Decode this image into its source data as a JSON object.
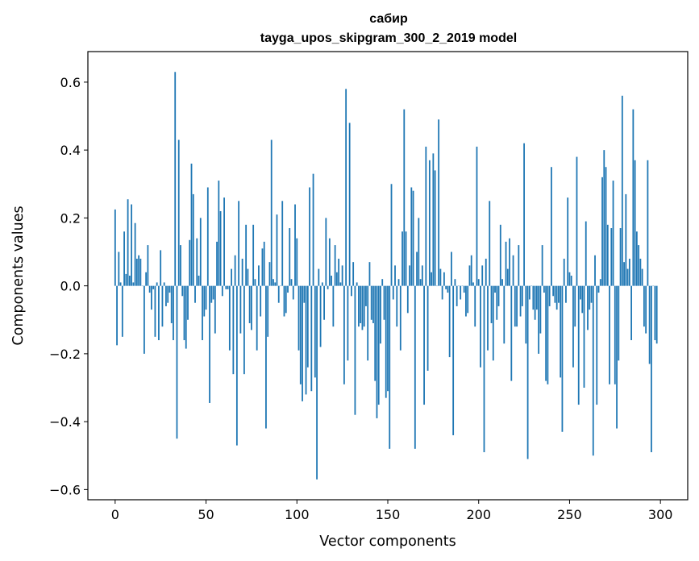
{
  "chart_data": {
    "type": "bar",
    "title_line1": "сабир",
    "title_line2": "tayga_upos_skipgram_300_2_2019 model",
    "xlabel": "Vector components",
    "ylabel": "Components values",
    "xlim": [
      -15,
      315
    ],
    "ylim": [
      -0.63,
      0.69
    ],
    "xticks": [
      0,
      50,
      100,
      150,
      200,
      250,
      300
    ],
    "xtick_labels": [
      "0",
      "50",
      "100",
      "150",
      "200",
      "250",
      "300"
    ],
    "yticks": [
      -0.6,
      -0.4,
      -0.2,
      0.0,
      0.2,
      0.4,
      0.6
    ],
    "ytick_labels": [
      "−0.6",
      "−0.4",
      "−0.2",
      "0.0",
      "0.2",
      "0.4",
      "0.6"
    ],
    "grid": false,
    "bar_color": "#1f77b4",
    "values": [
      0.225,
      -0.175,
      0.1,
      0.01,
      -0.15,
      0.16,
      0.035,
      0.255,
      0.03,
      0.24,
      0.01,
      0.185,
      0.08,
      0.09,
      0.08,
      0.0,
      -0.2,
      0.04,
      0.12,
      -0.02,
      -0.07,
      -0.01,
      -0.15,
      0.01,
      -0.16,
      0.105,
      -0.12,
      0.01,
      -0.06,
      -0.05,
      -0.02,
      -0.11,
      -0.16,
      0.63,
      -0.45,
      0.43,
      0.12,
      -0.03,
      -0.16,
      -0.185,
      -0.1,
      0.135,
      0.36,
      0.27,
      -0.05,
      0.14,
      0.03,
      0.2,
      -0.16,
      -0.09,
      -0.07,
      0.29,
      -0.345,
      -0.05,
      -0.04,
      -0.14,
      0.13,
      0.31,
      0.22,
      -0.03,
      0.26,
      -0.01,
      -0.01,
      -0.19,
      0.05,
      -0.26,
      0.09,
      -0.47,
      0.25,
      -0.14,
      0.08,
      -0.26,
      0.18,
      0.05,
      -0.11,
      -0.13,
      0.18,
      0.02,
      -0.19,
      0.06,
      -0.09,
      0.11,
      0.13,
      -0.42,
      -0.15,
      0.07,
      0.43,
      0.02,
      0.01,
      0.21,
      -0.05,
      0.0,
      0.25,
      -0.09,
      -0.08,
      -0.02,
      0.17,
      0.02,
      -0.04,
      0.24,
      0.14,
      -0.19,
      -0.29,
      -0.34,
      -0.05,
      -0.32,
      -0.24,
      0.29,
      -0.31,
      0.33,
      -0.27,
      -0.57,
      0.05,
      -0.18,
      0.01,
      -0.1,
      0.2,
      -0.01,
      0.14,
      0.03,
      -0.12,
      0.12,
      0.04,
      0.08,
      0.01,
      0.06,
      -0.29,
      0.58,
      -0.22,
      0.48,
      -0.03,
      0.07,
      -0.38,
      0.01,
      -0.12,
      -0.11,
      -0.13,
      -0.12,
      -0.06,
      -0.22,
      0.07,
      -0.1,
      -0.11,
      -0.28,
      -0.39,
      -0.35,
      -0.17,
      0.02,
      -0.1,
      -0.33,
      -0.31,
      -0.48,
      0.3,
      -0.04,
      0.06,
      -0.12,
      0.02,
      -0.19,
      0.16,
      0.52,
      0.16,
      -0.08,
      0.06,
      0.29,
      0.28,
      -0.48,
      0.1,
      0.2,
      0.02,
      0.06,
      -0.35,
      0.41,
      -0.25,
      0.37,
      0.04,
      0.39,
      0.34,
      0.0,
      0.49,
      0.05,
      -0.04,
      0.04,
      -0.01,
      -0.02,
      -0.21,
      0.1,
      -0.44,
      0.02,
      -0.06,
      0.0,
      -0.04,
      0.0,
      -0.02,
      -0.09,
      -0.08,
      0.06,
      0.09,
      0.01,
      -0.12,
      0.41,
      0.02,
      -0.24,
      0.06,
      -0.49,
      0.08,
      -0.19,
      0.25,
      -0.11,
      -0.22,
      -0.02,
      -0.1,
      -0.06,
      0.18,
      0.02,
      -0.17,
      0.13,
      0.05,
      0.14,
      -0.28,
      0.09,
      -0.12,
      -0.12,
      0.12,
      -0.09,
      -0.06,
      0.42,
      -0.17,
      -0.51,
      -0.04,
      0.0,
      -0.07,
      -0.1,
      -0.07,
      -0.2,
      -0.14,
      0.12,
      -0.02,
      -0.28,
      -0.29,
      -0.06,
      0.35,
      -0.03,
      -0.05,
      -0.07,
      -0.05,
      -0.27,
      -0.43,
      0.08,
      -0.05,
      0.26,
      0.04,
      0.03,
      -0.24,
      -0.12,
      0.38,
      -0.35,
      -0.04,
      -0.08,
      -0.3,
      0.19,
      -0.13,
      -0.07,
      -0.05,
      -0.5,
      0.09,
      -0.35,
      -0.02,
      0.02,
      0.32,
      0.4,
      0.35,
      0.18,
      -0.29,
      0.17,
      0.31,
      -0.29,
      -0.42,
      -0.22,
      0.17,
      0.56,
      0.07,
      0.27,
      0.05,
      0.08,
      -0.16,
      0.52,
      0.37,
      0.16,
      0.12,
      0.08,
      0.05,
      -0.12,
      -0.14,
      0.37,
      -0.23,
      -0.49,
      0.0,
      -0.16,
      -0.17
    ]
  }
}
